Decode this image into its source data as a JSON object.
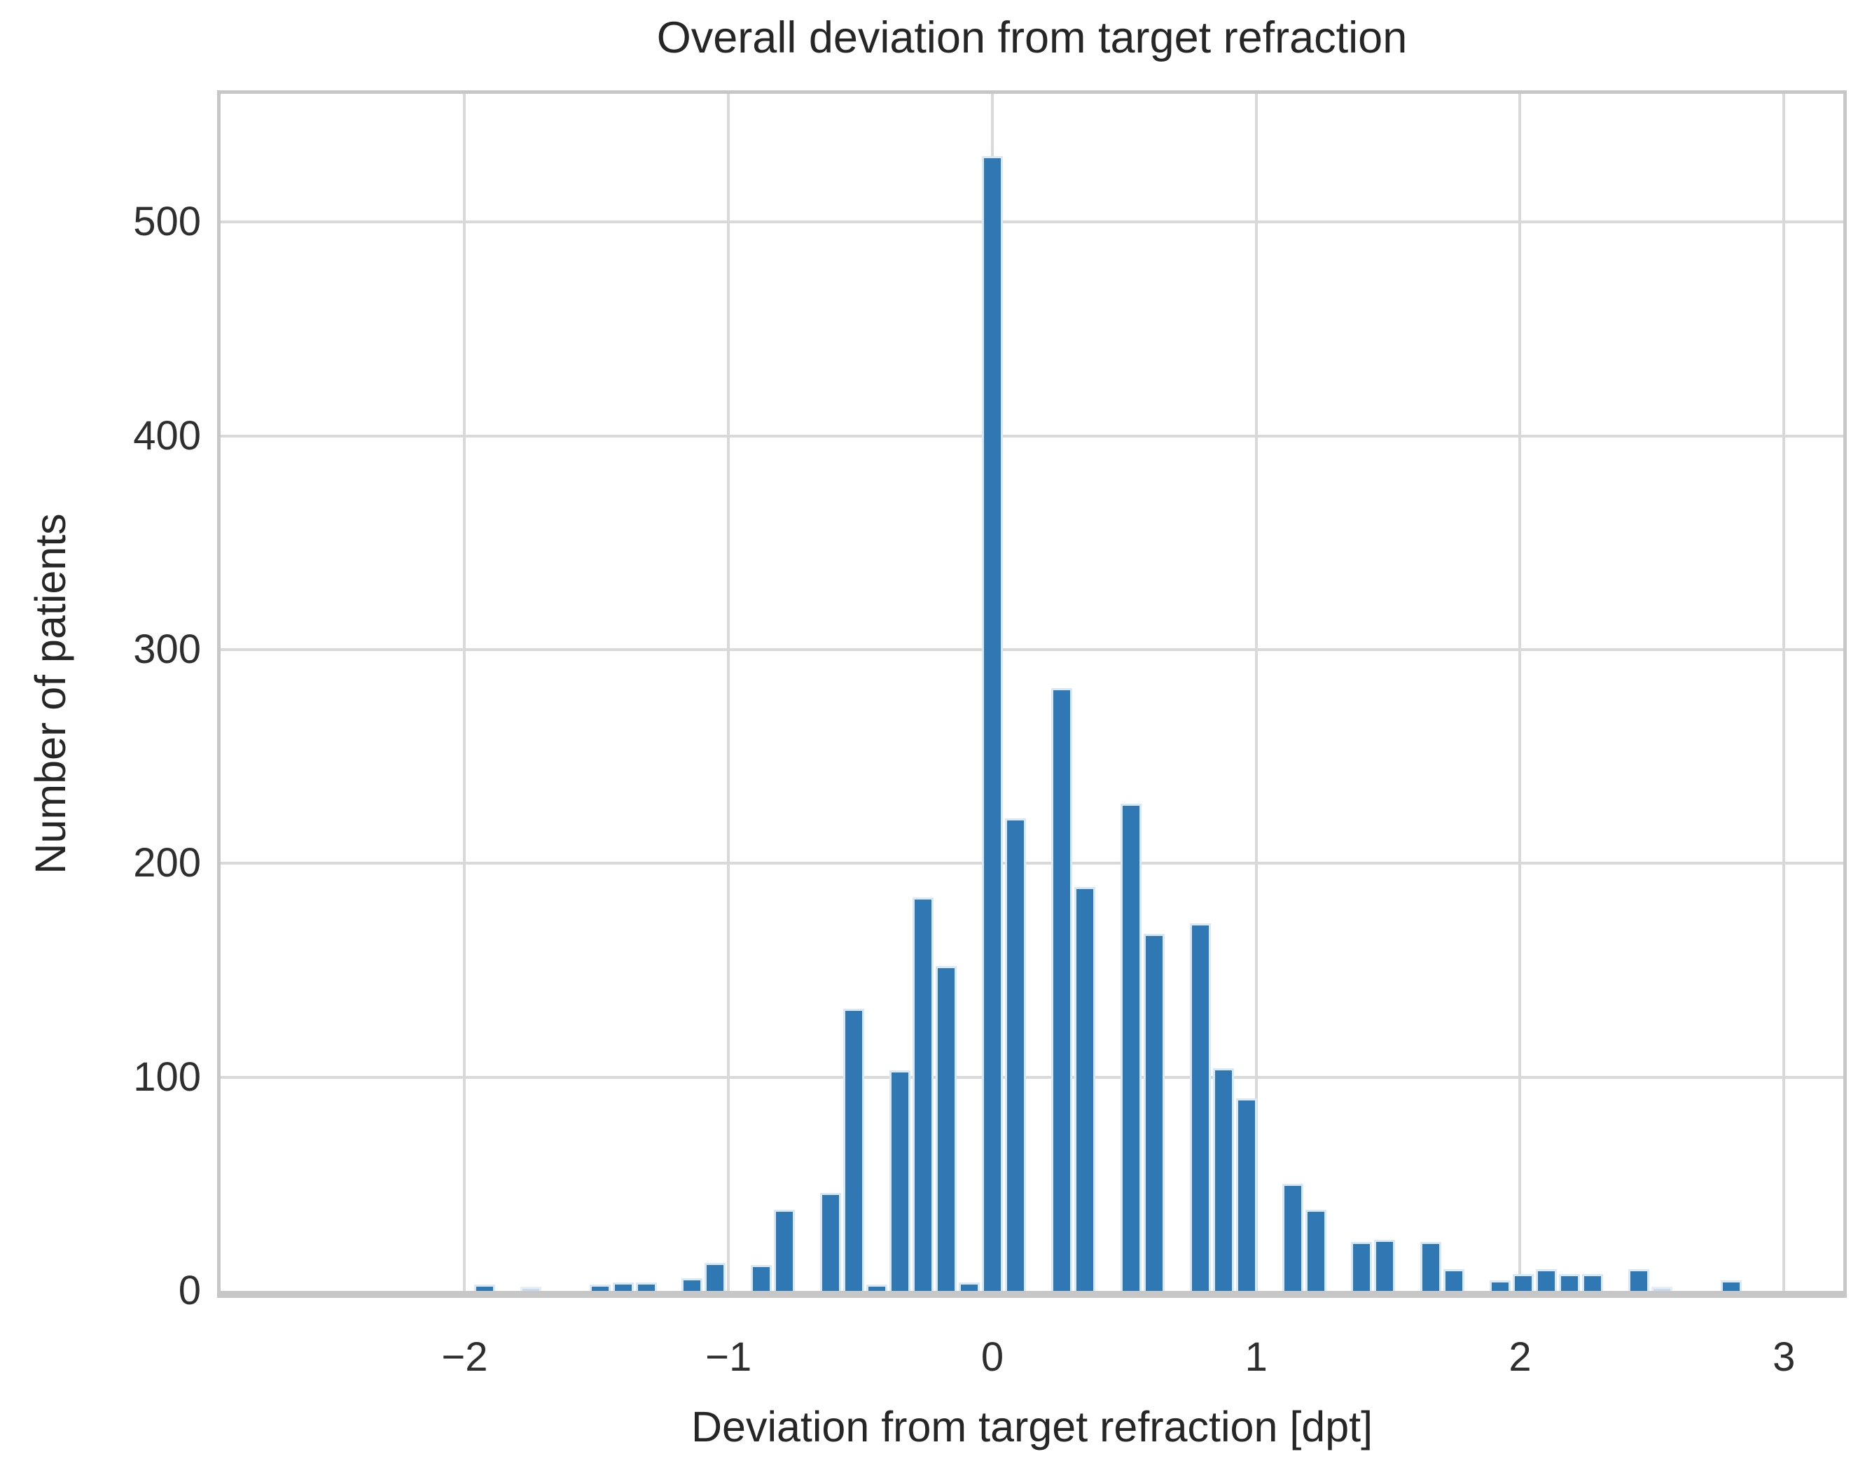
{
  "title": "Overall deviation from target refraction",
  "chart_data": {
    "type": "bar",
    "subtype": "histogram",
    "title": "Overall deviation from target refraction",
    "xlabel": "Deviation from target refraction [dpt]",
    "ylabel": "Number of patients",
    "xlim": [
      -2.925,
      3.225
    ],
    "ylim": [
      0,
      560
    ],
    "grid": true,
    "legend": false,
    "bin_width": 0.0875,
    "xticks": [
      -2,
      -1,
      0,
      1,
      2,
      3
    ],
    "xtick_labels": [
      "−2",
      "−1",
      "0",
      "1",
      "2",
      "3"
    ],
    "yticks": [
      0,
      100,
      200,
      300,
      400,
      500
    ],
    "ytick_labels": [
      "0",
      "100",
      "200",
      "300",
      "400",
      "500"
    ],
    "bars": [
      {
        "x": -1.925,
        "count": 3
      },
      {
        "x": -1.75,
        "count": 2,
        "muted": true
      },
      {
        "x": -1.4875,
        "count": 3
      },
      {
        "x": -1.4,
        "count": 4
      },
      {
        "x": -1.3125,
        "count": 4
      },
      {
        "x": -1.1375,
        "count": 6
      },
      {
        "x": -1.05,
        "count": 13
      },
      {
        "x": -0.875,
        "count": 12
      },
      {
        "x": -0.7875,
        "count": 38
      },
      {
        "x": -0.6125,
        "count": 46
      },
      {
        "x": -0.525,
        "count": 132
      },
      {
        "x": -0.4375,
        "count": 3
      },
      {
        "x": -0.35,
        "count": 103
      },
      {
        "x": -0.2625,
        "count": 184
      },
      {
        "x": -0.175,
        "count": 152
      },
      {
        "x": -0.0875,
        "count": 4
      },
      {
        "x": 0.0,
        "count": 531
      },
      {
        "x": 0.0875,
        "count": 221
      },
      {
        "x": 0.2625,
        "count": 282
      },
      {
        "x": 0.35,
        "count": 189
      },
      {
        "x": 0.525,
        "count": 228
      },
      {
        "x": 0.6125,
        "count": 167
      },
      {
        "x": 0.7875,
        "count": 172
      },
      {
        "x": 0.875,
        "count": 104
      },
      {
        "x": 0.9625,
        "count": 90
      },
      {
        "x": 1.1375,
        "count": 50
      },
      {
        "x": 1.225,
        "count": 38
      },
      {
        "x": 1.4,
        "count": 23
      },
      {
        "x": 1.4875,
        "count": 24
      },
      {
        "x": 1.6625,
        "count": 23
      },
      {
        "x": 1.75,
        "count": 10
      },
      {
        "x": 1.925,
        "count": 5
      },
      {
        "x": 2.0125,
        "count": 8
      },
      {
        "x": 2.1,
        "count": 10
      },
      {
        "x": 2.1875,
        "count": 8
      },
      {
        "x": 2.275,
        "count": 8
      },
      {
        "x": 2.45,
        "count": 10
      },
      {
        "x": 2.5375,
        "count": 2,
        "muted": true
      },
      {
        "x": 2.8,
        "count": 5
      }
    ]
  },
  "colors": {
    "bar_fill": "#3078b4",
    "bar_edge": "#d9e8f6",
    "muted_bar_fill": "#c9dbee",
    "grid": "#d9d9d9",
    "spine": "#c7c7c7",
    "text": "#262626"
  }
}
